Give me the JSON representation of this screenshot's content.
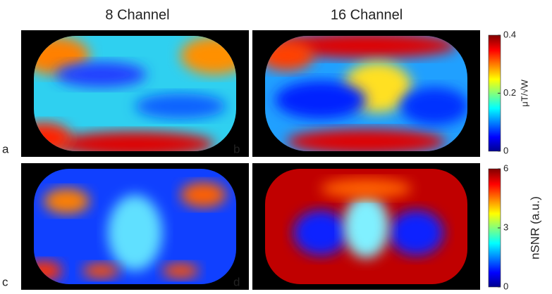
{
  "columns": [
    "8 Channel",
    "16 Channel"
  ],
  "panels": [
    "a",
    "b",
    "c",
    "d"
  ],
  "colorbars": [
    {
      "ticks": [
        0.4,
        0.2,
        0
      ],
      "label": "μT/√W"
    },
    {
      "ticks": [
        6,
        3,
        0
      ],
      "label": "nSNR (a.u.)"
    }
  ]
}
